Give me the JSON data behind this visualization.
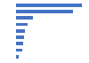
{
  "values": [
    33.5,
    29.0,
    8.5,
    6.0,
    4.5,
    4.0,
    3.5,
    3.0,
    1.5
  ],
  "bar_color": "#4472c4",
  "background_color": "#ffffff",
  "grid_color": "#d9d9d9",
  "xlim": [
    0,
    36
  ],
  "n_bars": 9,
  "bar_height": 0.5,
  "figwidth": 1.0,
  "figheight": 0.71,
  "dpi": 100
}
